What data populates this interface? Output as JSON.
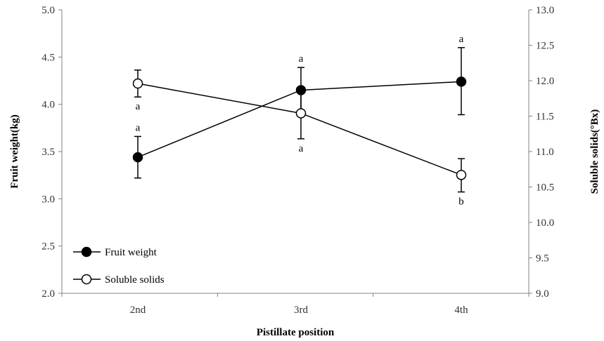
{
  "chart_data": {
    "type": "line",
    "xlabel": "Pistillate position",
    "ylabel_left": "Fruit weight(kg)",
    "ylabel_right": "Soluble solids(°Bx)",
    "categories": [
      "2nd",
      "3rd",
      "4th"
    ],
    "y_left": {
      "lim": [
        2.0,
        5.0
      ],
      "ticks": [
        "2.0",
        "2.5",
        "3.0",
        "3.5",
        "4.0",
        "4.5",
        "5.0"
      ]
    },
    "y_right": {
      "lim": [
        9.0,
        13.0
      ],
      "ticks": [
        "9.0",
        "9.5",
        "10.0",
        "10.5",
        "11.0",
        "11.5",
        "12.0",
        "12.5",
        "13.0"
      ]
    },
    "grid": false,
    "legend_position": "bottom-left",
    "series": [
      {
        "name": "Fruit weight",
        "axis": "left",
        "marker": "filled-circle",
        "values": [
          3.44,
          4.15,
          4.24
        ],
        "error_low": [
          3.22,
          3.9,
          3.89
        ],
        "error_high": [
          3.66,
          4.39,
          4.6
        ],
        "significance": [
          "a",
          "a",
          "a"
        ],
        "significance_pos": [
          "above",
          "above",
          "above"
        ]
      },
      {
        "name": "Soluble solids",
        "axis": "right",
        "marker": "open-circle",
        "values": [
          11.96,
          11.54,
          10.67
        ],
        "error_low": [
          11.77,
          11.18,
          10.43
        ],
        "error_high": [
          12.15,
          11.89,
          10.9
        ],
        "significance": [
          "a",
          "a",
          "b"
        ],
        "significance_pos": [
          "below",
          "below",
          "below"
        ]
      }
    ],
    "colors": {
      "line": "#000000",
      "axis": "#808080",
      "text": "#333333"
    }
  }
}
